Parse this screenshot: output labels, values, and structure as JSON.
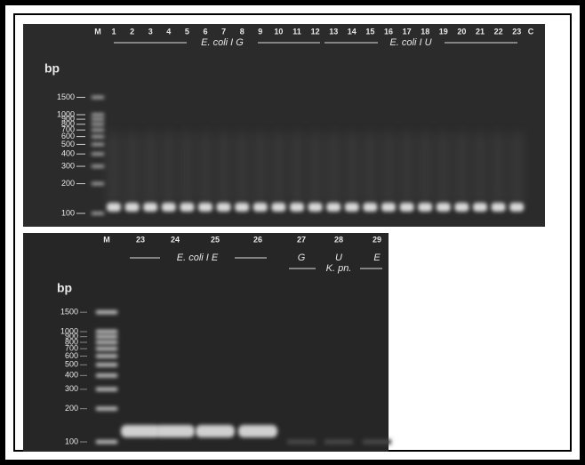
{
  "top_panel": {
    "unit": "bp",
    "lanes": [
      "M",
      "1",
      "2",
      "3",
      "4",
      "5",
      "6",
      "7",
      "8",
      "9",
      "10",
      "11",
      "12",
      "13",
      "14",
      "15",
      "16",
      "17",
      "18",
      "19",
      "20",
      "21",
      "22",
      "23",
      "C"
    ],
    "groups": [
      "E. coli I G",
      "E. coli I U"
    ],
    "ladder": [
      1500,
      1000,
      900,
      800,
      700,
      600,
      500,
      400,
      300,
      200,
      100
    ]
  },
  "bottom_panel": {
    "unit": "bp",
    "lanes": [
      "M",
      "23",
      "24",
      "25",
      "26",
      "27",
      "28",
      "29"
    ],
    "groups": [
      "E. coli I E",
      "K. pn."
    ],
    "sublabels": [
      "G",
      "U",
      "E"
    ],
    "ladder": [
      1500,
      1000,
      900,
      800,
      700,
      600,
      500,
      400,
      300,
      200,
      100
    ]
  }
}
